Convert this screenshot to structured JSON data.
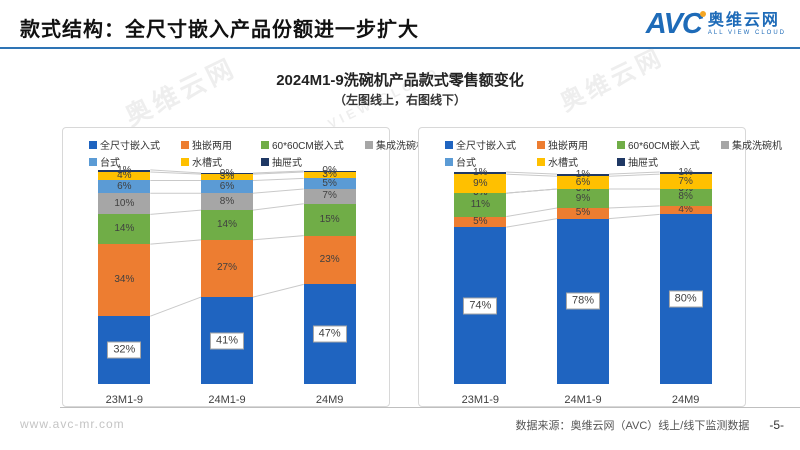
{
  "header": {
    "title": "款式结构：全尺寸嵌入产品份额进一步扩大",
    "logo_text": "AVC",
    "logo_cn": "奥维云网",
    "logo_sub": "ALL VIEW CLOUD"
  },
  "chart_header": {
    "title": "2024M1-9洗碗机产品款式零售额变化",
    "subtitle": "（左图线上，右图线下）"
  },
  "watermark": {
    "texts": [
      "奥维云网",
      "AVC",
      "ALL VIEW CLOUD"
    ]
  },
  "colors": {
    "accent_blue": "#2E74B5",
    "full_embed": "#1F64C0",
    "dual_use": "#ED7D31",
    "embed_60": "#70AD47",
    "integrated": "#A6A6A6",
    "countertop": "#5B9BD5",
    "sink": "#FFC000",
    "drawer": "#1F3864"
  },
  "chart_data": [
    {
      "type": "bar",
      "subtype": "stacked-100",
      "panel": "online (左图线上)",
      "categories": [
        "23M1-9",
        "24M1-9",
        "24M9"
      ],
      "ylim": [
        0,
        100
      ],
      "grid": false,
      "legend_position": "top",
      "series": [
        {
          "name": "全尺寸嵌入式",
          "color": "#1F64C0",
          "values": [
            32,
            41,
            47
          ],
          "labels": [
            "32%",
            "41%",
            "47%"
          ],
          "boxed": true
        },
        {
          "name": "独嵌两用",
          "color": "#ED7D31",
          "values": [
            34,
            27,
            23
          ],
          "labels": [
            "34%",
            "27%",
            "23%"
          ]
        },
        {
          "name": "60*60CM嵌入式",
          "color": "#70AD47",
          "values": [
            14,
            14,
            15
          ],
          "labels": [
            "14%",
            "14%",
            "15%"
          ]
        },
        {
          "name": "集成洗碗机",
          "color": "#A6A6A6",
          "values": [
            10,
            8,
            7
          ],
          "labels": [
            "10%",
            "8%",
            "7%"
          ]
        },
        {
          "name": "台式",
          "color": "#5B9BD5",
          "values": [
            6,
            6,
            5
          ],
          "labels": [
            "6%",
            "6%",
            "5%"
          ]
        },
        {
          "name": "水槽式",
          "color": "#FFC000",
          "values": [
            4,
            3,
            3
          ],
          "labels": [
            "4%",
            "3%",
            "3%"
          ]
        },
        {
          "name": "抽屉式",
          "color": "#1F3864",
          "values": [
            1,
            0.5,
            0.5
          ],
          "labels": [
            "1%",
            "0%",
            "0%"
          ]
        }
      ]
    },
    {
      "type": "bar",
      "subtype": "stacked-100",
      "panel": "offline (右图线下)",
      "categories": [
        "23M1-9",
        "24M1-9",
        "24M9"
      ],
      "ylim": [
        0,
        100
      ],
      "grid": false,
      "legend_position": "top",
      "series": [
        {
          "name": "全尺寸嵌入式",
          "color": "#1F64C0",
          "values": [
            74,
            78,
            80
          ],
          "labels": [
            "74%",
            "78%",
            "80%"
          ],
          "boxed": true
        },
        {
          "name": "独嵌两用",
          "color": "#ED7D31",
          "values": [
            5,
            5,
            4
          ],
          "labels": [
            "5%",
            "5%",
            "4%"
          ]
        },
        {
          "name": "60*60CM嵌入式",
          "color": "#70AD47",
          "values": [
            11,
            9,
            8
          ],
          "labels": [
            "11%",
            "9%",
            "8%"
          ]
        },
        {
          "name": "集成洗碗机",
          "color": "#A6A6A6",
          "values": [
            0,
            0,
            0
          ],
          "labels": [
            "0%",
            "0%",
            "0%"
          ]
        },
        {
          "name": "台式",
          "color": "#5B9BD5",
          "values": [
            0,
            0,
            0
          ],
          "labels": [
            "0%",
            "0%",
            "0%"
          ]
        },
        {
          "name": "水槽式",
          "color": "#FFC000",
          "values": [
            9,
            6,
            7
          ],
          "labels": [
            "9%",
            "6%",
            "7%"
          ]
        },
        {
          "name": "抽屉式",
          "color": "#1F3864",
          "values": [
            1,
            1,
            1
          ],
          "labels": [
            "1%",
            "1%",
            "1%"
          ]
        }
      ]
    }
  ],
  "footer": {
    "site": "www.avc-mr.com",
    "source": "数据来源：奥维云网（AVC）线上/线下监测数据",
    "page": "-5-"
  }
}
